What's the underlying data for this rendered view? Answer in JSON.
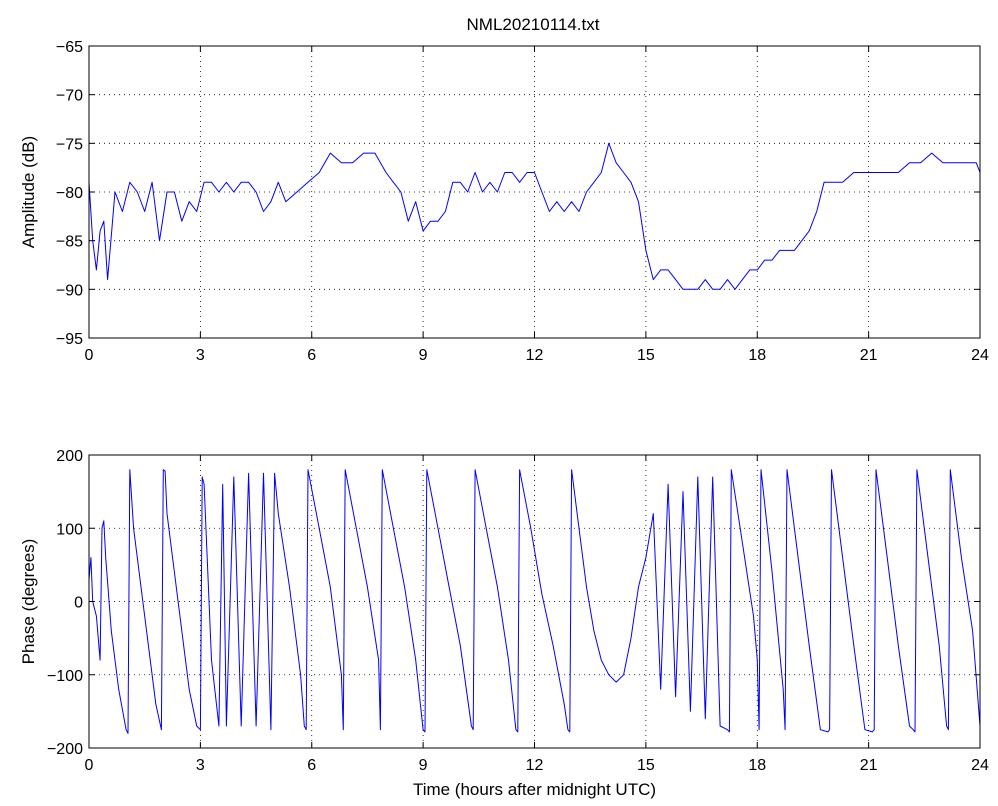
{
  "figure": {
    "title": "NML20210114.txt",
    "colors": {
      "series": "#0000ff",
      "axes": "#000000",
      "background": "#ffffff"
    }
  },
  "chart_data": [
    {
      "type": "line",
      "title": "NML20210114.txt",
      "xlabel": "",
      "ylabel": "Amplitude (dB)",
      "xlim": [
        0,
        24
      ],
      "ylim": [
        -95,
        -65
      ],
      "xticks": [
        0,
        3,
        6,
        9,
        12,
        15,
        18,
        21,
        24
      ],
      "yticks": [
        -95,
        -90,
        -85,
        -80,
        -75,
        -70,
        -65
      ],
      "xtick_labels": [
        "0",
        "3",
        "6",
        "9",
        "12",
        "15",
        "18",
        "21",
        "24"
      ],
      "ytick_labels": [
        "−95",
        "−90",
        "−85",
        "−80",
        "−75",
        "−70",
        "−65"
      ],
      "grid": true,
      "series": [
        {
          "color": "#0000ff",
          "x": [
            0,
            0.1,
            0.2,
            0.3,
            0.4,
            0.5,
            0.7,
            0.9,
            1.1,
            1.3,
            1.5,
            1.7,
            1.9,
            2.1,
            2.3,
            2.5,
            2.7,
            2.9,
            3.1,
            3.3,
            3.5,
            3.7,
            3.9,
            4.1,
            4.3,
            4.5,
            4.7,
            4.9,
            5.1,
            5.3,
            5.6,
            5.9,
            6.2,
            6.5,
            6.8,
            7.1,
            7.4,
            7.7,
            8.0,
            8.2,
            8.4,
            8.6,
            8.8,
            9.0,
            9.2,
            9.4,
            9.6,
            9.8,
            10.0,
            10.2,
            10.4,
            10.6,
            10.8,
            11.0,
            11.2,
            11.4,
            11.6,
            11.8,
            12.0,
            12.2,
            12.4,
            12.6,
            12.8,
            13.0,
            13.2,
            13.4,
            13.6,
            13.8,
            14.0,
            14.2,
            14.4,
            14.6,
            14.8,
            15.0,
            15.2,
            15.4,
            15.6,
            15.8,
            16.0,
            16.2,
            16.4,
            16.6,
            16.8,
            17.0,
            17.2,
            17.4,
            17.6,
            17.8,
            18.0,
            18.2,
            18.4,
            18.6,
            18.8,
            19.0,
            19.2,
            19.4,
            19.6,
            19.8,
            20.0,
            20.3,
            20.6,
            20.9,
            21.2,
            21.5,
            21.8,
            22.1,
            22.4,
            22.7,
            23.0,
            23.3,
            23.6,
            23.9,
            24.0
          ],
          "y": [
            -79,
            -85,
            -88,
            -84,
            -83,
            -89,
            -80,
            -82,
            -79,
            -80,
            -82,
            -79,
            -85,
            -80,
            -80,
            -83,
            -81,
            -82,
            -79,
            -79,
            -80,
            -79,
            -80,
            -79,
            -79,
            -80,
            -82,
            -81,
            -79,
            -81,
            -80,
            -79,
            -78,
            -76,
            -77,
            -77,
            -76,
            -76,
            -78,
            -79,
            -80,
            -83,
            -81,
            -84,
            -83,
            -83,
            -82,
            -79,
            -79,
            -80,
            -78,
            -80,
            -79,
            -80,
            -78,
            -78,
            -79,
            -78,
            -78,
            -80,
            -82,
            -81,
            -82,
            -81,
            -82,
            -80,
            -79,
            -78,
            -75,
            -77,
            -78,
            -79,
            -81,
            -86,
            -89,
            -88,
            -88,
            -89,
            -90,
            -90,
            -90,
            -89,
            -90,
            -90,
            -89,
            -90,
            -89,
            -88,
            -88,
            -87,
            -87,
            -86,
            -86,
            -86,
            -85,
            -84,
            -82,
            -79,
            -79,
            -79,
            -78,
            -78,
            -78,
            -78,
            -78,
            -77,
            -77,
            -76,
            -77,
            -77,
            -77,
            -77,
            -78
          ]
        }
      ]
    },
    {
      "type": "line",
      "title": "",
      "xlabel": "Time (hours after midnight UTC)",
      "ylabel": "Phase (degrees)",
      "xlim": [
        0,
        24
      ],
      "ylim": [
        -200,
        200
      ],
      "xticks": [
        0,
        3,
        6,
        9,
        12,
        15,
        18,
        21,
        24
      ],
      "yticks": [
        -200,
        -100,
        0,
        100,
        200
      ],
      "xtick_labels": [
        "0",
        "3",
        "6",
        "9",
        "12",
        "15",
        "18",
        "21",
        "24"
      ],
      "ytick_labels": [
        "−200",
        "−100",
        "0",
        "100",
        "200"
      ],
      "grid": true,
      "series": [
        {
          "color": "#0000ff",
          "x": [
            0,
            0.05,
            0.1,
            0.2,
            0.3,
            0.35,
            0.4,
            0.45,
            0.6,
            0.8,
            1.0,
            1.05,
            1.1,
            1.2,
            1.4,
            1.6,
            1.8,
            1.95,
            2.0,
            2.05,
            2.1,
            2.3,
            2.5,
            2.7,
            2.9,
            3.0,
            3.05,
            3.1,
            3.3,
            3.5,
            3.6,
            3.7,
            3.9,
            4.1,
            4.3,
            4.5,
            4.7,
            4.9,
            5.0,
            5.1,
            5.4,
            5.7,
            5.8,
            5.85,
            5.9,
            6.2,
            6.5,
            6.8,
            6.85,
            6.9,
            7.2,
            7.5,
            7.8,
            7.85,
            7.9,
            8.2,
            8.5,
            8.8,
            9.0,
            9.05,
            9.1,
            9.4,
            9.7,
            10.0,
            10.3,
            10.35,
            10.4,
            10.7,
            11.0,
            11.3,
            11.5,
            11.55,
            11.6,
            11.9,
            12.2,
            12.5,
            12.8,
            12.9,
            12.95,
            13.0,
            13.2,
            13.4,
            13.6,
            13.8,
            14.0,
            14.2,
            14.4,
            14.6,
            14.8,
            15.0,
            15.2,
            15.4,
            15.6,
            15.8,
            16.0,
            16.2,
            16.4,
            16.6,
            16.8,
            17.0,
            17.2,
            17.25,
            17.3,
            17.6,
            17.9,
            18.0,
            18.05,
            18.1,
            18.4,
            18.7,
            18.75,
            18.8,
            19.1,
            19.4,
            19.7,
            19.9,
            19.95,
            20.0,
            20.3,
            20.6,
            20.9,
            21.1,
            21.15,
            21.2,
            21.5,
            21.8,
            22.1,
            22.2,
            22.25,
            22.3,
            22.6,
            22.9,
            23.1,
            23.15,
            23.2,
            23.5,
            23.8,
            24.0
          ],
          "y": [
            30,
            60,
            0,
            -20,
            -80,
            100,
            110,
            60,
            -40,
            -120,
            -175,
            -180,
            180,
            100,
            20,
            -60,
            -140,
            -175,
            180,
            178,
            120,
            40,
            -40,
            -120,
            -170,
            -175,
            170,
            160,
            -80,
            -170,
            160,
            -170,
            170,
            -170,
            175,
            -170,
            175,
            -175,
            175,
            120,
            20,
            -100,
            -170,
            -175,
            180,
            100,
            20,
            -100,
            -175,
            180,
            100,
            20,
            -80,
            -175,
            180,
            100,
            20,
            -80,
            -175,
            -178,
            180,
            100,
            20,
            -60,
            -170,
            -175,
            180,
            100,
            20,
            -80,
            -175,
            -178,
            180,
            100,
            10,
            -60,
            -140,
            -175,
            -178,
            180,
            100,
            20,
            -40,
            -80,
            -100,
            -110,
            -100,
            -50,
            20,
            60,
            120,
            -120,
            160,
            -130,
            150,
            -150,
            170,
            -160,
            170,
            -170,
            -175,
            -178,
            180,
            80,
            -20,
            -80,
            -175,
            180,
            40,
            -120,
            -175,
            180,
            60,
            -60,
            -175,
            -178,
            -175,
            180,
            60,
            -60,
            -175,
            -178,
            -175,
            180,
            60,
            -60,
            -170,
            -175,
            -178,
            180,
            60,
            -60,
            -170,
            -175,
            180,
            60,
            -40,
            -170
          ]
        }
      ]
    }
  ]
}
